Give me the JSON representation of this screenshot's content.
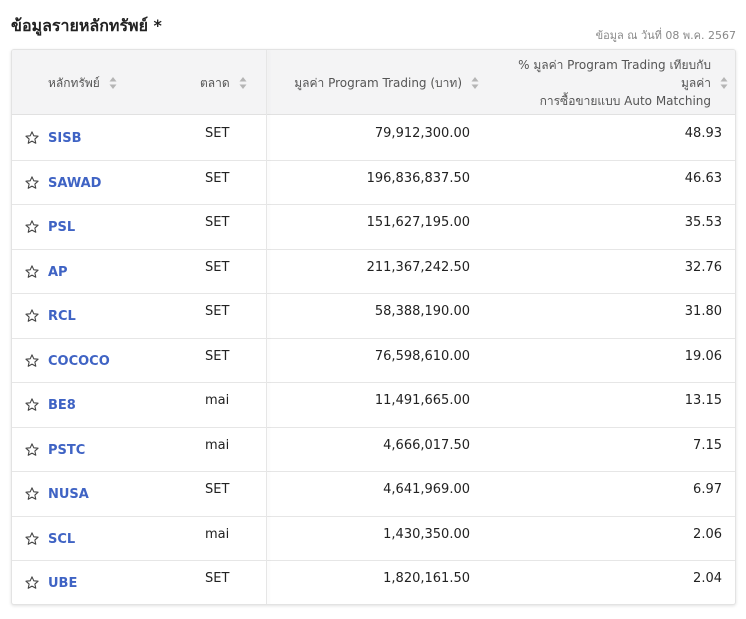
{
  "header": {
    "title": "ข้อมูลรายหลักทรัพย์ *",
    "as_of": "ข้อมูล ณ วันที่ 08 พ.ค. 2567"
  },
  "table": {
    "columns": {
      "symbol": "หลักทรัพย์",
      "market": "ตลาด",
      "value": "มูลค่า Program Trading (บาท)",
      "pct_line1": "% มูลค่า Program Trading เทียบกับมูลค่า",
      "pct_line2": "การซื้อขายแบบ Auto Matching"
    },
    "rows": [
      {
        "symbol": "SISB",
        "market": "SET",
        "value": "79,912,300.00",
        "pct": "48.93"
      },
      {
        "symbol": "SAWAD",
        "market": "SET",
        "value": "196,836,837.50",
        "pct": "46.63"
      },
      {
        "symbol": "PSL",
        "market": "SET",
        "value": "151,627,195.00",
        "pct": "35.53"
      },
      {
        "symbol": "AP",
        "market": "SET",
        "value": "211,367,242.50",
        "pct": "32.76"
      },
      {
        "symbol": "RCL",
        "market": "SET",
        "value": "58,388,190.00",
        "pct": "31.80"
      },
      {
        "symbol": "COCOCO",
        "market": "SET",
        "value": "76,598,610.00",
        "pct": "19.06"
      },
      {
        "symbol": "BE8",
        "market": "mai",
        "value": "11,491,665.00",
        "pct": "13.15"
      },
      {
        "symbol": "PSTC",
        "market": "mai",
        "value": "4,666,017.50",
        "pct": "7.15"
      },
      {
        "symbol": "NUSA",
        "market": "SET",
        "value": "4,641,969.00",
        "pct": "6.97"
      },
      {
        "symbol": "SCL",
        "market": "mai",
        "value": "1,430,350.00",
        "pct": "2.06"
      },
      {
        "symbol": "UBE",
        "market": "SET",
        "value": "1,820,161.50",
        "pct": "2.04"
      }
    ]
  },
  "icons": {
    "star": "star-outline-icon",
    "sort": "sort-arrows-icon"
  },
  "colors": {
    "link": "#3f63c4",
    "header_bg": "#f4f4f5"
  }
}
